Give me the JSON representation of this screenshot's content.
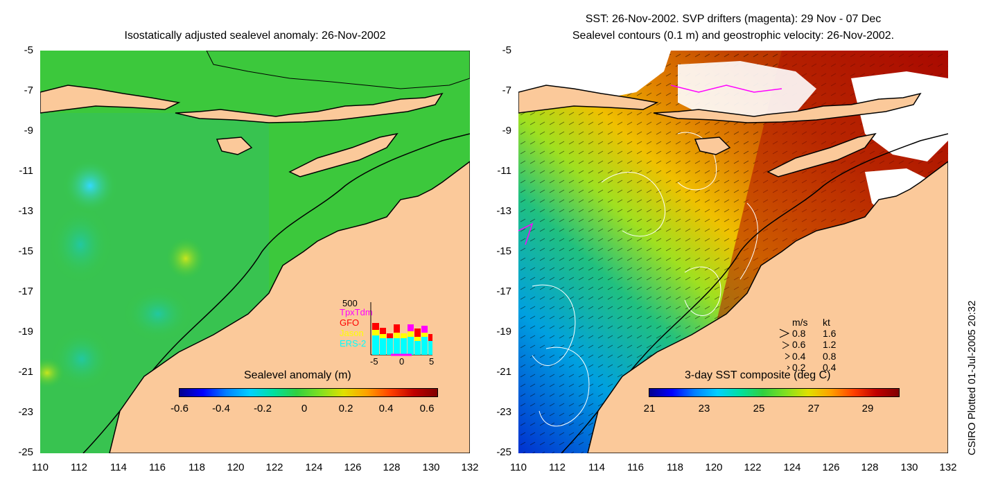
{
  "left_panel": {
    "title": "Isostatically adjusted sealevel anomaly: 26-Nov-2002",
    "y_ticks": [
      "-5",
      "-7",
      "-9",
      "-11",
      "-13",
      "-15",
      "-17",
      "-19",
      "-21",
      "-23",
      "-25"
    ],
    "x_ticks": [
      "110",
      "112",
      "114",
      "116",
      "118",
      "120",
      "122",
      "124",
      "126",
      "128",
      "130",
      "132"
    ],
    "colorbar": {
      "title": "Sealevel anomaly (m)",
      "labels": [
        "-0.6",
        "-0.4",
        "-0.2",
        "0",
        "0.2",
        "0.4",
        "0.6"
      ],
      "range": [
        -0.6,
        0.6
      ]
    },
    "inset": {
      "max_label": "500",
      "series": [
        {
          "name": "TpxTdm",
          "color": "#ff00ff"
        },
        {
          "name": "GFO",
          "color": "#ff0000"
        },
        {
          "name": "Jason",
          "color": "#ffff00"
        },
        {
          "name": "ERS-2",
          "color": "#00ffff"
        }
      ],
      "x_labels": [
        "-5",
        "0",
        "5"
      ]
    }
  },
  "right_panel": {
    "title_line1": "SST: 26-Nov-2002. SVP drifters (magenta): 29 Nov - 07 Dec",
    "title_line2": "Sealevel contours (0.1 m) and geostrophic velocity: 26-Nov-2002.",
    "y_ticks": [
      "-5",
      "-7",
      "-9",
      "-11",
      "-13",
      "-15",
      "-17",
      "-19",
      "-21",
      "-23",
      "-25"
    ],
    "x_ticks": [
      "110",
      "112",
      "114",
      "116",
      "118",
      "120",
      "122",
      "124",
      "126",
      "128",
      "130",
      "132"
    ],
    "colorbar": {
      "title": "3-day SST composite (deg C)",
      "labels": [
        "21",
        "23",
        "25",
        "27",
        "29"
      ],
      "range": [
        21,
        30
      ]
    },
    "velocity_legend": {
      "header_ms": "m/s",
      "header_kt": "kt",
      "rows": [
        {
          "ms": "0.8",
          "kt": "1.6"
        },
        {
          "ms": "0.6",
          "kt": "1.2"
        },
        {
          "ms": "0.4",
          "kt": "0.8"
        },
        {
          "ms": "0.2",
          "kt": "0.4"
        }
      ]
    }
  },
  "credit": "CSIRO Plotted 01-Jul-2005 20:32",
  "colors": {
    "land": "#fbc99a",
    "ocean_green": "#3cc83c",
    "cloud": "#ffffff"
  }
}
